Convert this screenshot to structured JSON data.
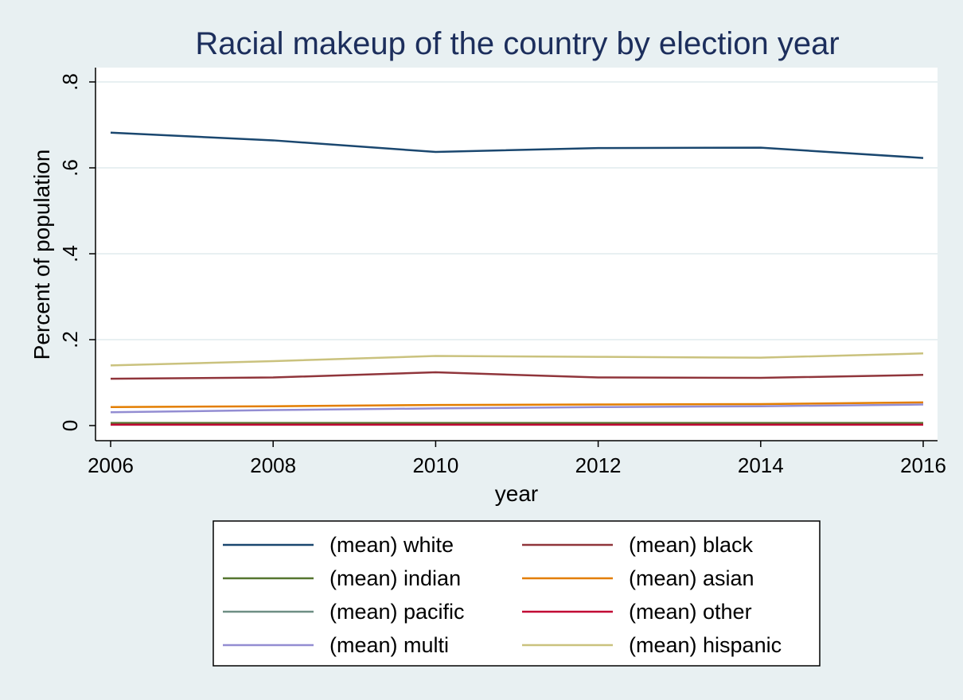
{
  "chart_data": {
    "type": "line",
    "title": "Racial makeup of the country by election year",
    "xlabel": "year",
    "ylabel": "Percent of population",
    "x": [
      2006,
      2008,
      2010,
      2012,
      2014,
      2016
    ],
    "xticks": [
      "2006",
      "2008",
      "2010",
      "2012",
      "2014",
      "2016"
    ],
    "yticks": [
      {
        "value": 0,
        "label": "0"
      },
      {
        "value": 0.2,
        "label": ".2"
      },
      {
        "value": 0.4,
        "label": ".4"
      },
      {
        "value": 0.6,
        "label": ".6"
      },
      {
        "value": 0.8,
        "label": ".8"
      }
    ],
    "xlim": [
      2006,
      2016
    ],
    "ylim": [
      0,
      0.8
    ],
    "grid": true,
    "legend_position": "bottom",
    "series": [
      {
        "name": "(mean) white",
        "color": "#1a476f",
        "values": [
          0.682,
          0.664,
          0.637,
          0.646,
          0.647,
          0.623
        ]
      },
      {
        "name": "(mean) black",
        "color": "#90353b",
        "values": [
          0.109,
          0.112,
          0.124,
          0.112,
          0.111,
          0.118
        ]
      },
      {
        "name": "(mean) indian",
        "color": "#55752f",
        "values": [
          0.006,
          0.006,
          0.006,
          0.006,
          0.006,
          0.006
        ]
      },
      {
        "name": "(mean) asian",
        "color": "#e37e00",
        "values": [
          0.043,
          0.045,
          0.048,
          0.049,
          0.05,
          0.054
        ]
      },
      {
        "name": "(mean) pacific",
        "color": "#6e8e84",
        "values": [
          0.002,
          0.002,
          0.002,
          0.002,
          0.002,
          0.002
        ]
      },
      {
        "name": "(mean) other",
        "color": "#c10534",
        "values": [
          0.002,
          0.002,
          0.002,
          0.002,
          0.002,
          0.002
        ]
      },
      {
        "name": "(mean) multi",
        "color": "#938dd2",
        "values": [
          0.031,
          0.036,
          0.04,
          0.043,
          0.045,
          0.049
        ]
      },
      {
        "name": "(mean) hispanic",
        "color": "#cac27e",
        "values": [
          0.14,
          0.15,
          0.162,
          0.16,
          0.158,
          0.168
        ]
      }
    ]
  },
  "colors": {
    "background": "#e8f0f2",
    "plot_background": "#ffffff",
    "grid": "#e8f0f2",
    "title": "#1c2e5c"
  }
}
